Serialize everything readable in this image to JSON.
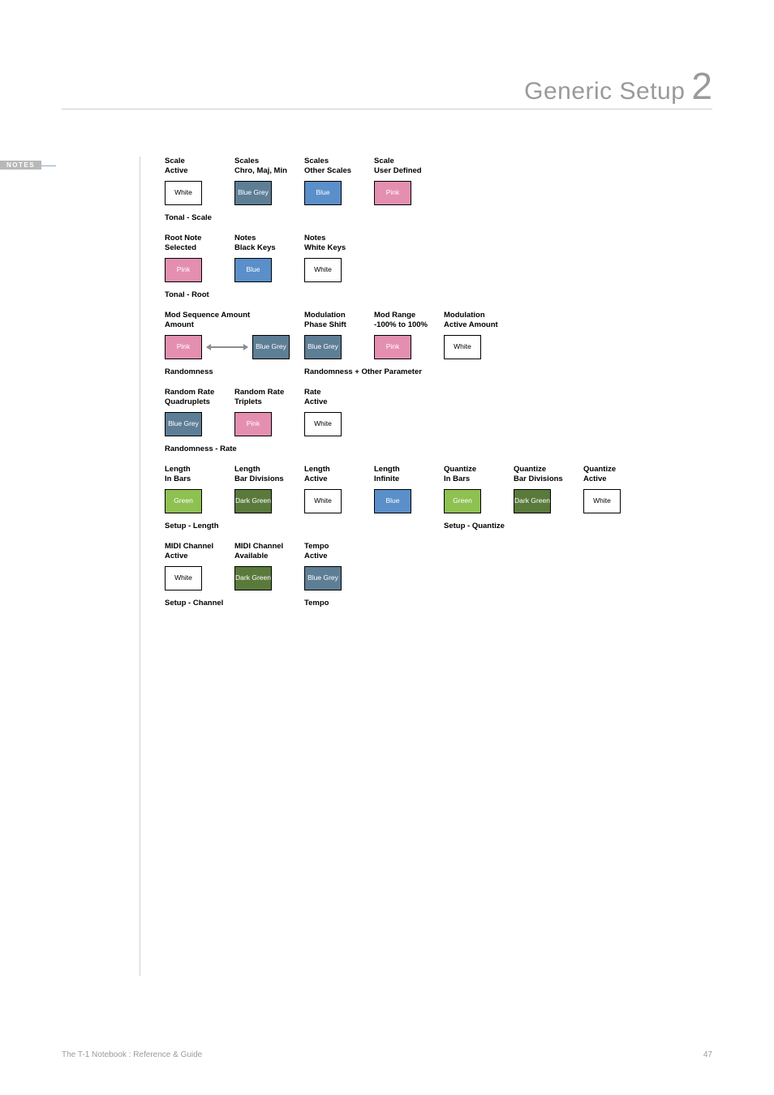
{
  "header": {
    "title": "Generic Setup",
    "number": "2"
  },
  "sidebar": {
    "notes_label": "NOTES"
  },
  "colors": {
    "white": {
      "bg": "#ffffff",
      "fg": "#000000",
      "label": "White"
    },
    "blue_grey": {
      "bg": "#5e7e96",
      "fg": "#ffffff",
      "label": "Blue\nGrey"
    },
    "blue": {
      "bg": "#5b8fc9",
      "fg": "#ffffff",
      "label": "Blue"
    },
    "pink": {
      "bg": "#e48fb0",
      "fg": "#ffffff",
      "label": "Pink"
    },
    "green": {
      "bg": "#8ec151",
      "fg": "#ffffff",
      "label": "Green"
    },
    "dark_green": {
      "bg": "#5a7a3c",
      "fg": "#ffffff",
      "label": "Dark\nGreen"
    }
  },
  "groups": [
    {
      "rows": [
        {
          "cells": [
            {
              "label": "Scale\nActive",
              "color": "white"
            },
            {
              "label": "Scales\nChro, Maj, Min",
              "color": "blue_grey"
            },
            {
              "label": "Scales\nOther Scales",
              "color": "blue"
            },
            {
              "label": "Scale\nUser Defined",
              "color": "pink"
            }
          ]
        }
      ],
      "sections": [
        {
          "label": "Tonal - Scale",
          "span": 4
        }
      ]
    },
    {
      "rows": [
        {
          "cells": [
            {
              "label": "Root Note\nSelected",
              "color": "pink"
            },
            {
              "label": "Notes\nBlack Keys",
              "color": "blue"
            },
            {
              "label": "Notes\nWhite Keys",
              "color": "white"
            }
          ]
        }
      ],
      "sections": [
        {
          "label": "Tonal - Root",
          "span": 3
        }
      ]
    },
    {
      "rows": [
        {
          "cells": [
            {
              "label": "Mod Sequence Amount\nAmount",
              "wide": true,
              "pair": [
                "pink",
                "blue_grey"
              ]
            },
            {
              "label": "Modulation\nPhase Shift",
              "color": "blue_grey"
            },
            {
              "label": "Mod Range\n-100% to 100%",
              "color": "pink"
            },
            {
              "label": "Modulation\nActive Amount",
              "color": "white"
            }
          ]
        }
      ],
      "sections": [
        {
          "label": "Randomness",
          "span_units": 2
        },
        {
          "label": "Randomness + Other Parameter",
          "span_units": 3
        }
      ]
    },
    {
      "rows": [
        {
          "cells": [
            {
              "label": "Random Rate\nQuadruplets",
              "color": "blue_grey"
            },
            {
              "label": "Random Rate\nTriplets",
              "color": "pink"
            },
            {
              "label": "Rate\nActive",
              "color": "white"
            }
          ]
        }
      ],
      "sections": [
        {
          "label": "Randomness - Rate",
          "span": 3
        }
      ]
    },
    {
      "rows": [
        {
          "cells": [
            {
              "label": "Length\nIn Bars",
              "color": "green"
            },
            {
              "label": "Length\nBar Divisions",
              "color": "dark_green"
            },
            {
              "label": "Length\nActive",
              "color": "white"
            },
            {
              "label": "Length\nInfinite",
              "color": "blue"
            },
            {
              "label": "Quantize\nIn Bars",
              "color": "green"
            },
            {
              "label": "Quantize\nBar Divisions",
              "color": "dark_green"
            },
            {
              "label": "Quantize\nActive",
              "color": "white"
            }
          ]
        }
      ],
      "sections": [
        {
          "label": "Setup - Length",
          "span": 4
        },
        {
          "label": "Setup - Quantize",
          "span": 3
        }
      ]
    },
    {
      "rows": [
        {
          "cells": [
            {
              "label": "MIDI Channel\nActive",
              "color": "white"
            },
            {
              "label": "MIDI Channel\nAvailable",
              "color": "dark_green"
            },
            {
              "label": "Tempo\nActive",
              "color": "blue_grey"
            }
          ]
        }
      ],
      "sections": [
        {
          "label": "Setup - Channel",
          "span": 2
        },
        {
          "label": "Tempo",
          "span": 1
        }
      ]
    }
  ],
  "footer": {
    "left": "The T-1 Notebook : Reference & Guide",
    "page": "47"
  }
}
